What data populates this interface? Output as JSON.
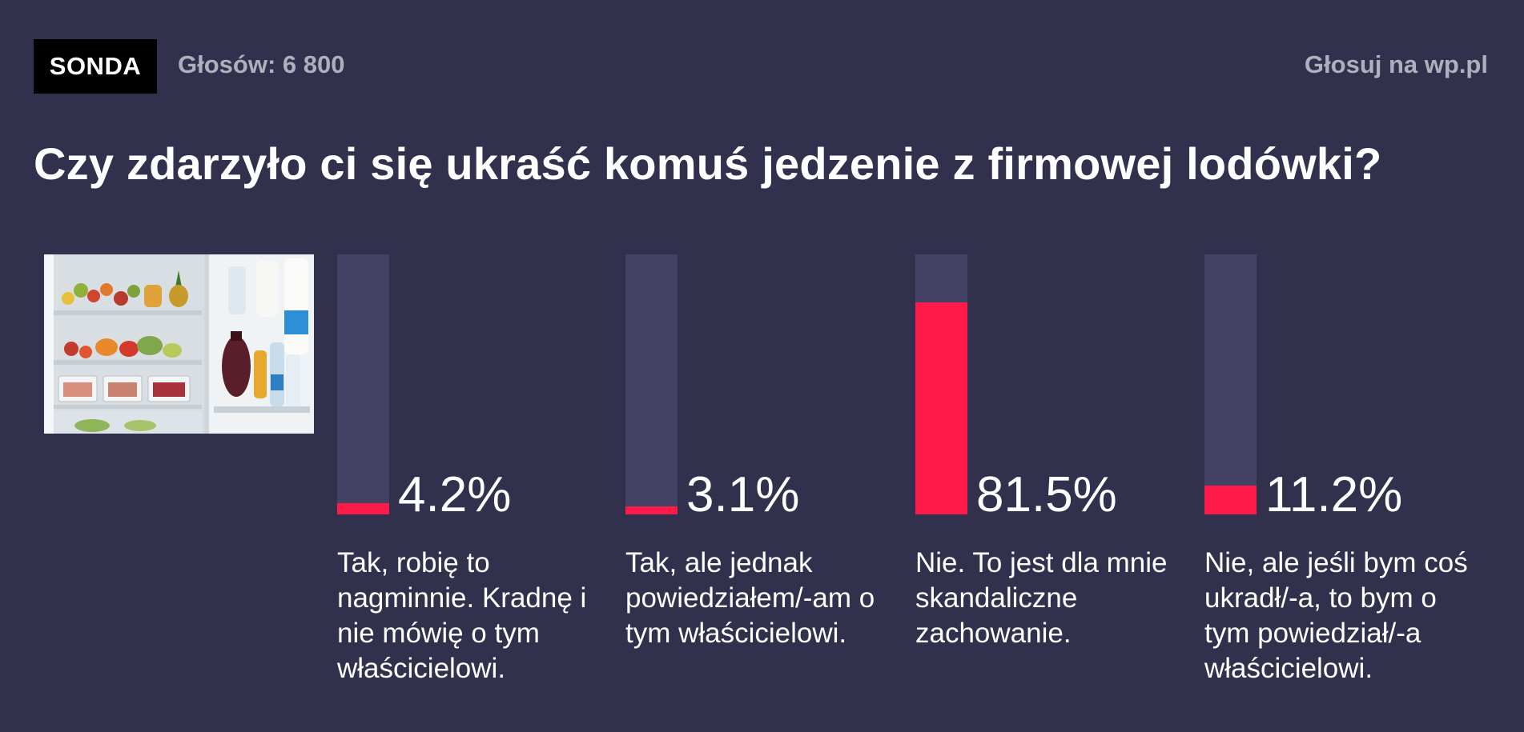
{
  "header": {
    "badge": "SONDA",
    "votes": "Głosów: 6 800",
    "vote_link": "Głosuj na wp.pl"
  },
  "question": "Czy zdarzyło ci się ukraść komuś jedzenie z firmowej lodówki?",
  "photo": {
    "icon": "fridge-photo"
  },
  "colors": {
    "background": "#32314d",
    "track": "#434164",
    "accent": "#ff1a4a",
    "muted_text": "#b0afbd"
  },
  "options": [
    {
      "percent_label": "4.2%",
      "value": 4.2,
      "answer": "Tak, robię to nagminnie. Kradnę i nie mówię o tym właścicielowi."
    },
    {
      "percent_label": "3.1%",
      "value": 3.1,
      "answer": "Tak, ale jednak powiedziałem/-am o tym właścicielowi."
    },
    {
      "percent_label": "81.5%",
      "value": 81.5,
      "answer": "Nie. To jest dla mnie skandaliczne zachowanie."
    },
    {
      "percent_label": "11.2%",
      "value": 11.2,
      "answer": "Nie, ale jeśli bym coś ukradł/-a, to bym o tym powiedział/-a właścicielowi."
    }
  ]
}
